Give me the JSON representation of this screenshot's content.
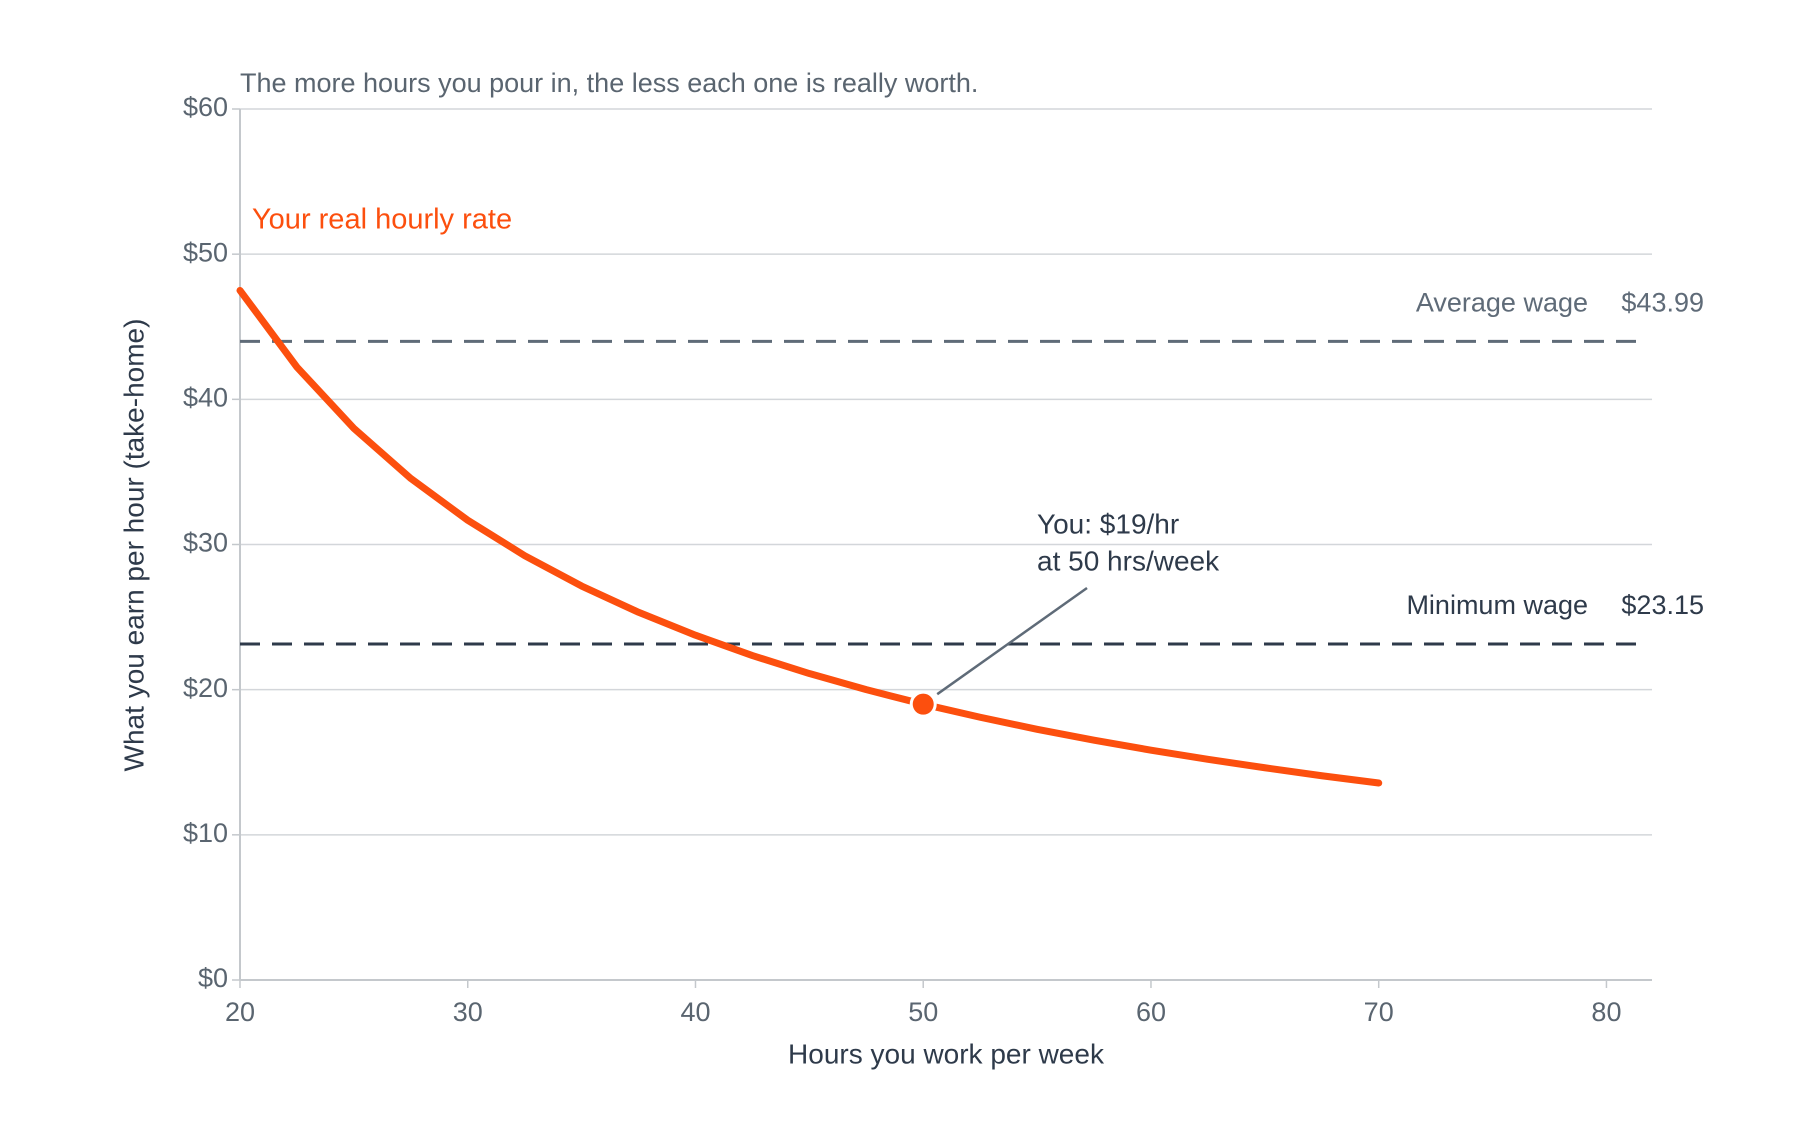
{
  "chart_data": {
    "type": "line",
    "title": "The more hours you pour in, the less each one is really worth.",
    "x_label": "Hours you work per week",
    "y_label": "What you earn per hour (take-home)",
    "x": [
      20,
      22.5,
      25,
      27.5,
      30,
      32.5,
      35,
      37.5,
      40,
      42.5,
      45,
      47.5,
      50,
      52.5,
      55,
      57.5,
      60,
      62.5,
      65,
      67.5,
      70
    ],
    "series": [
      {
        "name": "Your real hourly rate",
        "color": "#fc4f0e",
        "values": [
          47.5,
          42.22,
          38,
          34.55,
          31.67,
          29.23,
          27.14,
          25.33,
          23.75,
          22.35,
          21.11,
          20,
          19,
          18.1,
          17.27,
          16.52,
          15.83,
          15.2,
          14.62,
          14.07,
          13.57
        ]
      }
    ],
    "reference_lines": [
      {
        "name": "Average wage",
        "value": 43.99,
        "value_label": "$43.99",
        "color": "#5f6b78"
      },
      {
        "name": "Minimum wage",
        "value": 23.15,
        "value_label": "$23.15",
        "color": "#2e3a4a"
      }
    ],
    "highlight": {
      "x": 50,
      "y": 19,
      "label": [
        "You: $19/hr",
        "at 50 hrs/week"
      ]
    },
    "xlim": [
      20,
      82
    ],
    "xticks": [
      20,
      30,
      40,
      50,
      60,
      70,
      80
    ],
    "ylim": [
      0,
      60
    ],
    "yticks": [
      {
        "value": 0,
        "label": "$0"
      },
      {
        "value": 10,
        "label": "$10"
      },
      {
        "value": 20,
        "label": "$20"
      },
      {
        "value": 30,
        "label": "$30"
      },
      {
        "value": 40,
        "label": "$40"
      },
      {
        "value": 50,
        "label": "$50"
      },
      {
        "value": 60,
        "label": "$60"
      }
    ],
    "grid": true
  }
}
